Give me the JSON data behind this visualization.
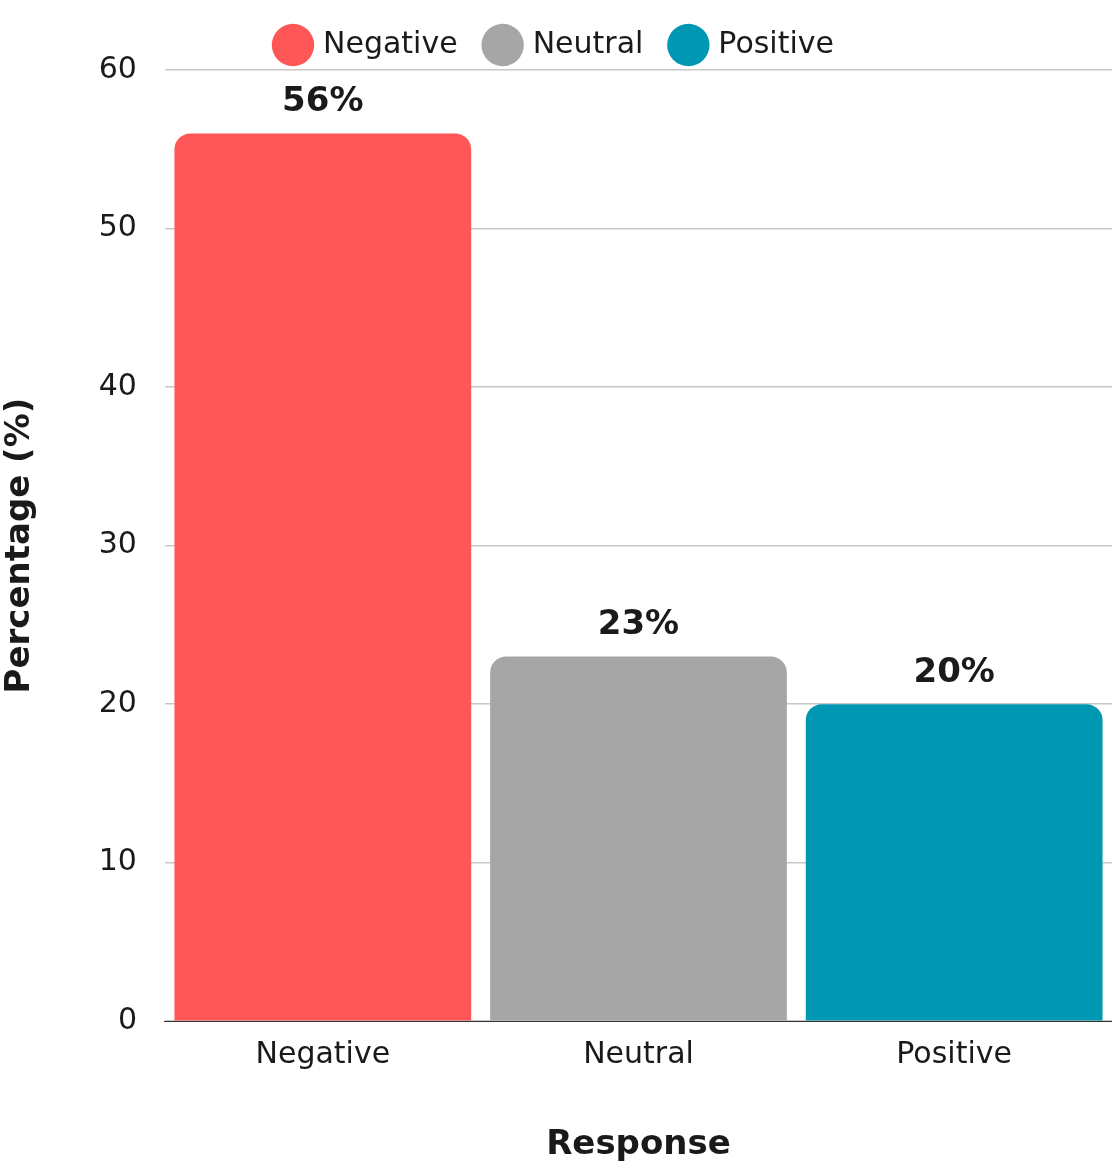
{
  "chart_data": {
    "type": "bar",
    "xlabel": "Response",
    "ylabel": "Percentage (%)",
    "categories": [
      "Negative",
      "Neutral",
      "Positive"
    ],
    "series": [
      {
        "name": "Negative",
        "color": "#ff5757",
        "values": [
          56,
          null,
          null
        ],
        "value_labels": [
          "56%",
          null,
          null
        ]
      },
      {
        "name": "Neutral",
        "color": "#a6a6a6",
        "values": [
          null,
          23,
          null
        ],
        "value_labels": [
          null,
          "23%",
          null
        ]
      },
      {
        "name": "Positive",
        "color": "#0097b2",
        "values": [
          null,
          null,
          20
        ],
        "value_labels": [
          null,
          null,
          "20%"
        ]
      }
    ],
    "ylim": [
      0,
      60
    ],
    "yticks": [
      0,
      10,
      20,
      30,
      40,
      50,
      60
    ],
    "grid": "y",
    "legend": "top"
  }
}
